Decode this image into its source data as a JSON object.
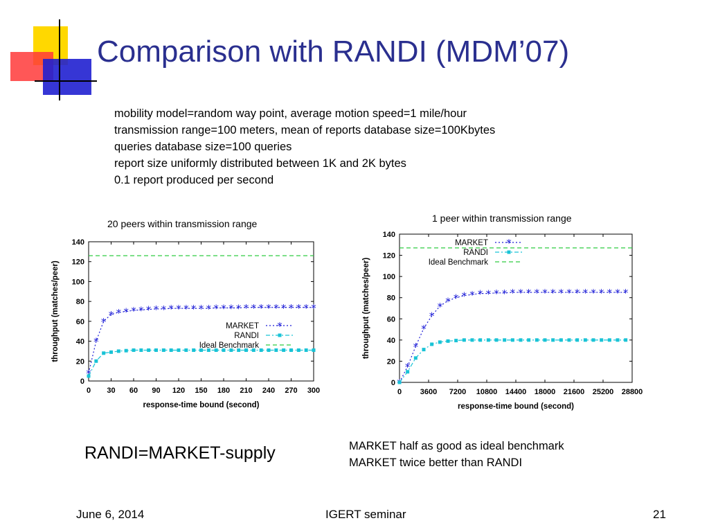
{
  "slide": {
    "title": "Comparison with RANDI (MDM’07)",
    "params": [
      "mobility model=random way point, average motion speed=1 mile/hour",
      "transmission range=100 meters, mean of reports database size=100Kbytes",
      "queries database size=100 queries",
      "report size uniformly distributed between 1K and 2K bytes",
      "0.1 report produced per second"
    ],
    "note_left": "RANDI=MARKET-supply",
    "note_right": [
      "MARKET half as good as ideal benchmark",
      "MARKET twice better than RANDI"
    ],
    "footer": {
      "date": "June 6, 2014",
      "center": "IGERT seminar",
      "page": "21"
    }
  },
  "colors": {
    "title": "#2a2f8f",
    "market": "#1a1ad6",
    "randi": "#19c3d6",
    "ideal": "#2ecc40",
    "logo_yellow": "#ffd800",
    "logo_red": "#ff3a3a",
    "logo_blue": "#2020d0"
  },
  "chart_data": [
    {
      "type": "line",
      "title": "20 peers within transmission range",
      "xlabel": "response-time bound (second)",
      "ylabel": "throughput (matches/peer)",
      "xlim": [
        0,
        300
      ],
      "ylim": [
        0,
        140
      ],
      "xticks": [
        "0",
        "30",
        "60",
        "90",
        "120",
        "150",
        "180",
        "210",
        "240",
        "270",
        "300"
      ],
      "yticks": [
        "0",
        "20",
        "40",
        "60",
        "80",
        "100",
        "120",
        "140"
      ],
      "legend_position": "center-right",
      "series": [
        {
          "name": "MARKET",
          "marker": "star",
          "style": "dotted",
          "x": [
            0,
            10,
            20,
            30,
            40,
            50,
            60,
            70,
            80,
            90,
            100,
            110,
            120,
            130,
            140,
            150,
            160,
            170,
            180,
            190,
            200,
            210,
            220,
            230,
            240,
            250,
            260,
            270,
            280,
            290,
            300
          ],
          "y": [
            8,
            40,
            60,
            67,
            69,
            70,
            71,
            71.5,
            72,
            72.5,
            72.5,
            73,
            73,
            73,
            73,
            73,
            73,
            73.5,
            73.5,
            73.5,
            73.5,
            74,
            74,
            74,
            74,
            74,
            74,
            74,
            74,
            74,
            74
          ]
        },
        {
          "name": "RANDI",
          "marker": "square",
          "style": "dash-dot",
          "x": [
            0,
            10,
            20,
            30,
            40,
            50,
            60,
            70,
            80,
            90,
            100,
            110,
            120,
            130,
            140,
            150,
            160,
            170,
            180,
            190,
            200,
            210,
            220,
            230,
            240,
            250,
            260,
            270,
            280,
            290,
            300
          ],
          "y": [
            5,
            20,
            28,
            29,
            30,
            30.5,
            31,
            31,
            31,
            31,
            31,
            31,
            31,
            31,
            31,
            31,
            31,
            31,
            31,
            31,
            31,
            31,
            31,
            31,
            31,
            31,
            31,
            31,
            31,
            31,
            31
          ]
        },
        {
          "name": "Ideal Benchmark",
          "marker": "none",
          "style": "dashed",
          "x": [
            0,
            300
          ],
          "y": [
            126,
            126
          ]
        }
      ]
    },
    {
      "type": "line",
      "title": "1 peer within transmission range",
      "xlabel": "response-time bound (second)",
      "ylabel": "throughput (matches/peer)",
      "xlim": [
        0,
        28800
      ],
      "ylim": [
        0,
        140
      ],
      "xticks": [
        "0",
        "3600",
        "7200",
        "10800",
        "14400",
        "18000",
        "21600",
        "25200",
        "28800"
      ],
      "yticks": [
        "0",
        "20",
        "40",
        "60",
        "80",
        "100",
        "120",
        "140"
      ],
      "legend_position": "top-center",
      "series": [
        {
          "name": "MARKET",
          "marker": "star",
          "style": "dotted",
          "x": [
            0,
            1000,
            2000,
            3000,
            4000,
            5000,
            6000,
            7000,
            8000,
            9000,
            10000,
            11000,
            12000,
            13000,
            14000,
            15000,
            16000,
            17000,
            18000,
            19000,
            20000,
            21000,
            22000,
            23000,
            24000,
            25000,
            26000,
            27000,
            28000
          ],
          "y": [
            0,
            15,
            34,
            51,
            63,
            72,
            77,
            80,
            82,
            83,
            84,
            84,
            84.5,
            84.5,
            85,
            85,
            85,
            85,
            85,
            85,
            85,
            85,
            85,
            85,
            85,
            85,
            85,
            85,
            85
          ]
        },
        {
          "name": "RANDI",
          "marker": "square",
          "style": "dash-dot",
          "x": [
            0,
            1000,
            2000,
            3000,
            4000,
            5000,
            6000,
            7000,
            8000,
            9000,
            10000,
            11000,
            12000,
            13000,
            14000,
            15000,
            16000,
            17000,
            18000,
            19000,
            20000,
            21000,
            22000,
            23000,
            24000,
            25000,
            26000,
            27000,
            28000
          ],
          "y": [
            0,
            10,
            23,
            31,
            36,
            38,
            39,
            39.5,
            40,
            40,
            40,
            40,
            40,
            40,
            40,
            40,
            40,
            40,
            40,
            40,
            40,
            40,
            40,
            40,
            40,
            40,
            40,
            40,
            40
          ]
        },
        {
          "name": "Ideal Benchmark",
          "marker": "none",
          "style": "dashed",
          "x": [
            0,
            28800
          ],
          "y": [
            127,
            127
          ]
        }
      ]
    }
  ]
}
